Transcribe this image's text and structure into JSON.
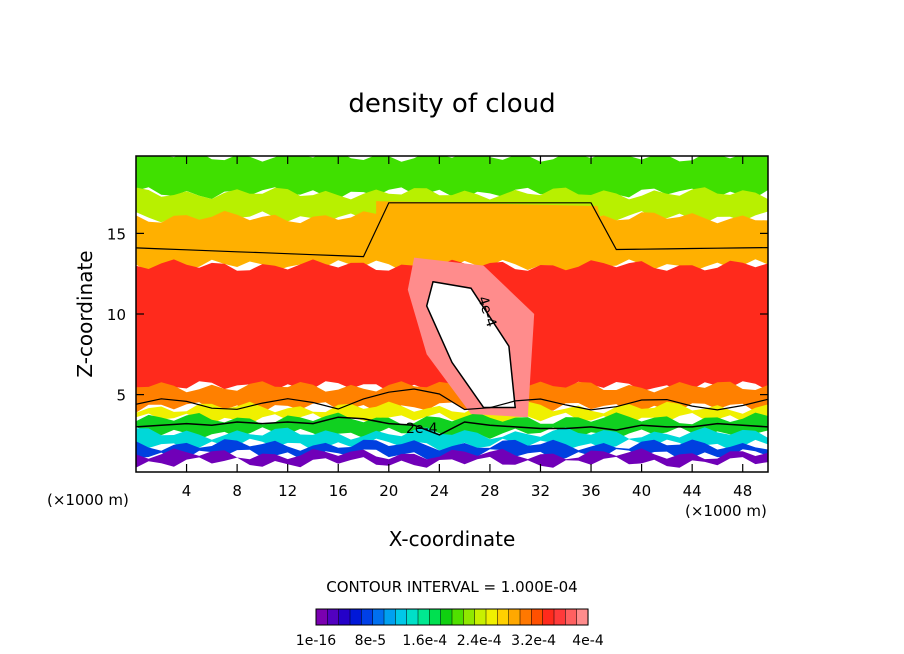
{
  "chart_data": {
    "type": "heatmap",
    "title": "density of cloud",
    "xlabel": "X-coordinate",
    "ylabel": "Z-coordinate",
    "x_unit_left": "(×1000 m)",
    "x_unit_right": "(×1000 m)",
    "xlim": [
      0,
      50
    ],
    "ylim": [
      0.2,
      19.8
    ],
    "x_ticks": [
      4,
      8,
      12,
      16,
      20,
      24,
      28,
      32,
      36,
      40,
      44,
      48
    ],
    "y_ticks": [
      5,
      10,
      15
    ],
    "contour_interval_text": "CONTOUR INTERVAL = 1.000E-04",
    "contour_labels": [
      "4e-4",
      "2e-4"
    ],
    "colorbar_tick_labels": [
      "1e-16",
      "8e-5",
      "1.6e-4",
      "2.4e-4",
      "3.2e-4",
      "4e-4"
    ],
    "colorbar_colors": [
      "#7a00b0",
      "#5200c0",
      "#2400c8",
      "#0018d8",
      "#0040e8",
      "#0070f0",
      "#00a0f0",
      "#00c8e8",
      "#00e0c8",
      "#00e890",
      "#00e050",
      "#10d010",
      "#50e000",
      "#90e800",
      "#c8f000",
      "#f0f000",
      "#ffd000",
      "#ffa800",
      "#ff7800",
      "#ff5000",
      "#ff2a1c",
      "#ff3a3a",
      "#ff6060",
      "#ff8c8c"
    ],
    "bands": [
      {
        "level": "upper",
        "color": "#40e000",
        "z_from": 17.5,
        "z_to": 19.8
      },
      {
        "level": "yellow-green",
        "color": "#b8f000",
        "z_from": 16.0,
        "z_to": 17.5
      },
      {
        "level": "orange",
        "color": "#ffb000",
        "z_from": 13.0,
        "z_to": 16.0
      },
      {
        "level": "red",
        "color": "#ff2a1c",
        "z_from": 5.5,
        "z_to": 13.0
      },
      {
        "level": "low-orange",
        "color": "#ff8000",
        "z_from": 4.2,
        "z_to": 5.5
      },
      {
        "level": "yellow",
        "color": "#f0f000",
        "z_from": 3.5,
        "z_to": 4.2
      },
      {
        "level": "green",
        "color": "#10d020",
        "z_from": 2.6,
        "z_to": 3.5
      },
      {
        "level": "cyan",
        "color": "#00d8d8",
        "z_from": 1.9,
        "z_to": 2.6
      },
      {
        "level": "blue",
        "color": "#0040e0",
        "z_from": 1.3,
        "z_to": 1.9
      },
      {
        "level": "purple",
        "color": "#7000b8",
        "z_from": 0.8,
        "z_to": 1.3
      }
    ],
    "plateau": {
      "x_from": 19.0,
      "x_to": 37.5,
      "z_top": 17.0,
      "description_level": "orange/yellow raised region"
    },
    "max_region": {
      "color": "#ffffff",
      "points_xz": [
        [
          23.5,
          12.0
        ],
        [
          26.5,
          11.6
        ],
        [
          29.5,
          8.0
        ],
        [
          30.0,
          4.2
        ],
        [
          27.5,
          4.2
        ],
        [
          25.0,
          7.0
        ],
        [
          23.0,
          10.5
        ]
      ]
    },
    "halo_region": {
      "color": "#ff8c8c",
      "points_xz": [
        [
          22.0,
          13.5
        ],
        [
          27.5,
          13.0
        ],
        [
          31.5,
          10.0
        ],
        [
          31.0,
          3.6
        ],
        [
          26.5,
          3.8
        ],
        [
          23.0,
          7.5
        ],
        [
          21.5,
          11.5
        ]
      ]
    },
    "contour_2e4_z": [
      3.0,
      3.1,
      3.2,
      3.1,
      3.3,
      3.2,
      3.3,
      3.2,
      3.6,
      3.5,
      3.2,
      3.1,
      2.5,
      3.3,
      3.1,
      3.0,
      2.9,
      2.9,
      3.0,
      2.8,
      3.1,
      3.0,
      3.0,
      3.2,
      3.1,
      3.0
    ]
  }
}
